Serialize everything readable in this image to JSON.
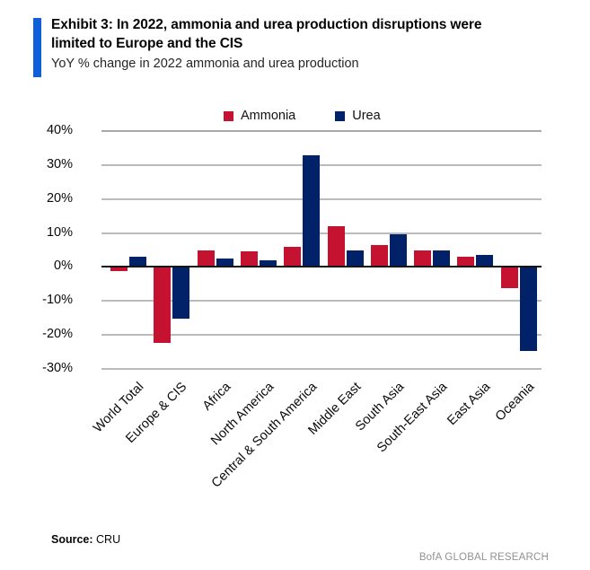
{
  "header": {
    "title_line1": "Exhibit 3: In 2022, ammonia and urea production disruptions were",
    "title_line2": "limited to Europe and the CIS",
    "subtitle": "YoY % change in 2022 ammonia and urea production"
  },
  "chart_data": {
    "type": "bar",
    "title": "YoY % change in 2022 ammonia and urea production",
    "categories": [
      "World Total",
      "Europe & CIS",
      "Africa",
      "North America",
      "Central & South America",
      "Middle East",
      "South Asia",
      "South-East Asia",
      "East Asia",
      "Oceania"
    ],
    "series": [
      {
        "name": "Ammonia",
        "color": "#C41230",
        "values": [
          -1,
          -22,
          5,
          4.5,
          6,
          12,
          6.5,
          5,
          3,
          -6
        ]
      },
      {
        "name": "Urea",
        "color": "#012169",
        "values": [
          3,
          -15,
          2.5,
          2,
          33,
          5,
          9.5,
          5,
          3.5,
          -24.5
        ]
      }
    ],
    "xlabel": "",
    "ylabel": "",
    "ylim": [
      -30,
      40
    ],
    "y_ticks": [
      40,
      30,
      20,
      10,
      0,
      -10,
      -20,
      -30
    ],
    "y_tick_labels": [
      "40%",
      "30%",
      "20%",
      "10%",
      "0%",
      "-10%",
      "-20%",
      "-30%"
    ],
    "grid": "horizontal",
    "legend_position": "top-center"
  },
  "footer": {
    "source_label": "Source:",
    "source_value": " CRU",
    "brand": "BofA GLOBAL RESEARCH"
  },
  "colors": {
    "accent_bar": "#0E5FD8",
    "ammonia": "#C41230",
    "urea": "#012169",
    "gridline": "#BBBBBB",
    "zero_line": "#141414",
    "brand_text": "#8F9194"
  }
}
